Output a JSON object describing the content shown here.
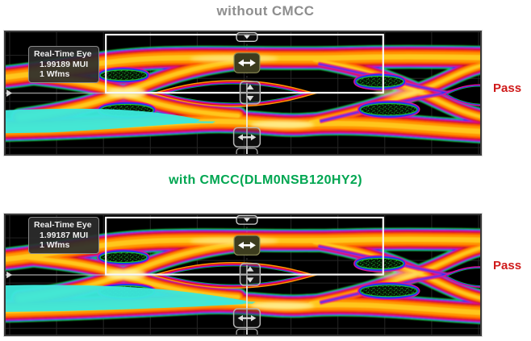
{
  "page": {
    "background": "#ffffff"
  },
  "sections": {
    "top": {
      "title": "without CMCC",
      "title_color": "#8e8e8e",
      "result": "Pass",
      "info": {
        "line1": "Real-Time Eye",
        "line2": "1.99189 MUI",
        "line3": "1 Wfms"
      }
    },
    "bottom": {
      "title": "with CMCC(DLM0NSB120HY2)",
      "title_color": "#00a651",
      "result": "Pass",
      "info": {
        "line1": "Real-Time Eye",
        "line2": "1.99187 MUI",
        "line3": "1 Wfms"
      }
    }
  },
  "status": {
    "pass_color": "#cf1a1a"
  },
  "eye_colors": {
    "background": "#000000",
    "grid": "#262626",
    "trace_green": "#17c32b",
    "trace_blue": "#2436f0",
    "trace_magenta": "#e01090",
    "trace_red": "#cf1020",
    "trace_orange_red": "#ff5a00",
    "trace_orange": "#ff9400",
    "trace_yellow": "#ffc71f",
    "trace_core": "#fff2a0",
    "trace_cyan": "#3ce8dc",
    "mask_rect": "#f8f8f8",
    "marker_gray": "#c6c6c6",
    "cursor_line": "#b9b9b9"
  },
  "icons": {
    "horizontal_cursor_handle": "left-right-arrow-icon",
    "vertical_cursor_handle": "up-down-arrow-icon",
    "top_reference_tab": "chevron-down-icon"
  }
}
